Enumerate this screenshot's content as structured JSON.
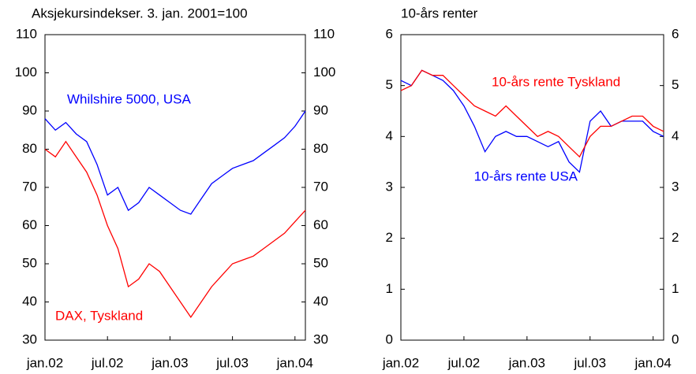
{
  "chart_data": [
    {
      "type": "line",
      "title": "Aksjekursindekser. 3. jan. 2001=100",
      "x": [
        "2002-01",
        "2002-02",
        "2002-03",
        "2002-04",
        "2002-05",
        "2002-06",
        "2002-07",
        "2002-08",
        "2002-09",
        "2002-10",
        "2002-11",
        "2002-12",
        "2003-01",
        "2003-02",
        "2003-03",
        "2003-04",
        "2003-05",
        "2003-06",
        "2003-07",
        "2003-08",
        "2003-09",
        "2003-10",
        "2003-11",
        "2003-12",
        "2004-01",
        "2004-02"
      ],
      "xlim": [
        "2002-01",
        "2004-02"
      ],
      "xticks": [
        {
          "value": "2002-01",
          "label": "jan.02"
        },
        {
          "value": "2002-07",
          "label": "jul.02"
        },
        {
          "value": "2003-01",
          "label": "jan.03"
        },
        {
          "value": "2003-07",
          "label": "jul.03"
        },
        {
          "value": "2004-01",
          "label": "jan.04"
        }
      ],
      "ylim": [
        30,
        110
      ],
      "yticks": [
        30,
        40,
        50,
        60,
        70,
        80,
        90,
        100,
        110
      ],
      "y2lim": [
        30,
        110
      ],
      "y2ticks": [
        30,
        40,
        50,
        60,
        70,
        80,
        90,
        100,
        110
      ],
      "series": [
        {
          "name": "Whilshire 5000, USA",
          "color": "#0000ff",
          "values": [
            88,
            85,
            87,
            84,
            82,
            76,
            68,
            70,
            64,
            66,
            70,
            68,
            66,
            64,
            63,
            67,
            71,
            73,
            75,
            76,
            77,
            79,
            81,
            83,
            86,
            90
          ]
        },
        {
          "name": "DAX, Tyskland",
          "color": "#ff0000",
          "values": [
            80,
            78,
            82,
            78,
            74,
            68,
            60,
            54,
            44,
            46,
            50,
            48,
            44,
            40,
            36,
            40,
            44,
            47,
            50,
            51,
            52,
            54,
            56,
            58,
            61,
            64
          ]
        }
      ]
    },
    {
      "type": "line",
      "title": "10-års renter",
      "x": [
        "2002-01",
        "2002-02",
        "2002-03",
        "2002-04",
        "2002-05",
        "2002-06",
        "2002-07",
        "2002-08",
        "2002-09",
        "2002-10",
        "2002-11",
        "2002-12",
        "2003-01",
        "2003-02",
        "2003-03",
        "2003-04",
        "2003-05",
        "2003-06",
        "2003-07",
        "2003-08",
        "2003-09",
        "2003-10",
        "2003-11",
        "2003-12",
        "2004-01",
        "2004-02"
      ],
      "xlim": [
        "2002-01",
        "2004-02"
      ],
      "xticks": [
        {
          "value": "2002-01",
          "label": "jan.02"
        },
        {
          "value": "2002-07",
          "label": "jul.02"
        },
        {
          "value": "2003-01",
          "label": "jan.03"
        },
        {
          "value": "2003-07",
          "label": "jul.03"
        },
        {
          "value": "2004-01",
          "label": "jan.04"
        }
      ],
      "ylim": [
        0,
        6
      ],
      "yticks": [
        0,
        1,
        2,
        3,
        4,
        5,
        6
      ],
      "y2lim": [
        0,
        6
      ],
      "y2ticks": [
        0,
        1,
        2,
        3,
        4,
        5,
        6
      ],
      "series": [
        {
          "name": "10-års rente USA",
          "color": "#0000ff",
          "values": [
            5.1,
            5.0,
            5.3,
            5.2,
            5.1,
            4.9,
            4.6,
            4.2,
            3.7,
            4.0,
            4.1,
            4.0,
            4.0,
            3.9,
            3.8,
            3.9,
            3.5,
            3.3,
            4.3,
            4.5,
            4.2,
            4.3,
            4.3,
            4.3,
            4.1,
            4.0
          ]
        },
        {
          "name": "10-års rente Tyskland",
          "color": "#ff0000",
          "values": [
            4.9,
            5.0,
            5.3,
            5.2,
            5.2,
            5.0,
            4.8,
            4.6,
            4.5,
            4.4,
            4.6,
            4.4,
            4.2,
            4.0,
            4.1,
            4.0,
            3.8,
            3.6,
            4.0,
            4.2,
            4.2,
            4.3,
            4.4,
            4.4,
            4.2,
            4.1
          ]
        }
      ]
    }
  ]
}
